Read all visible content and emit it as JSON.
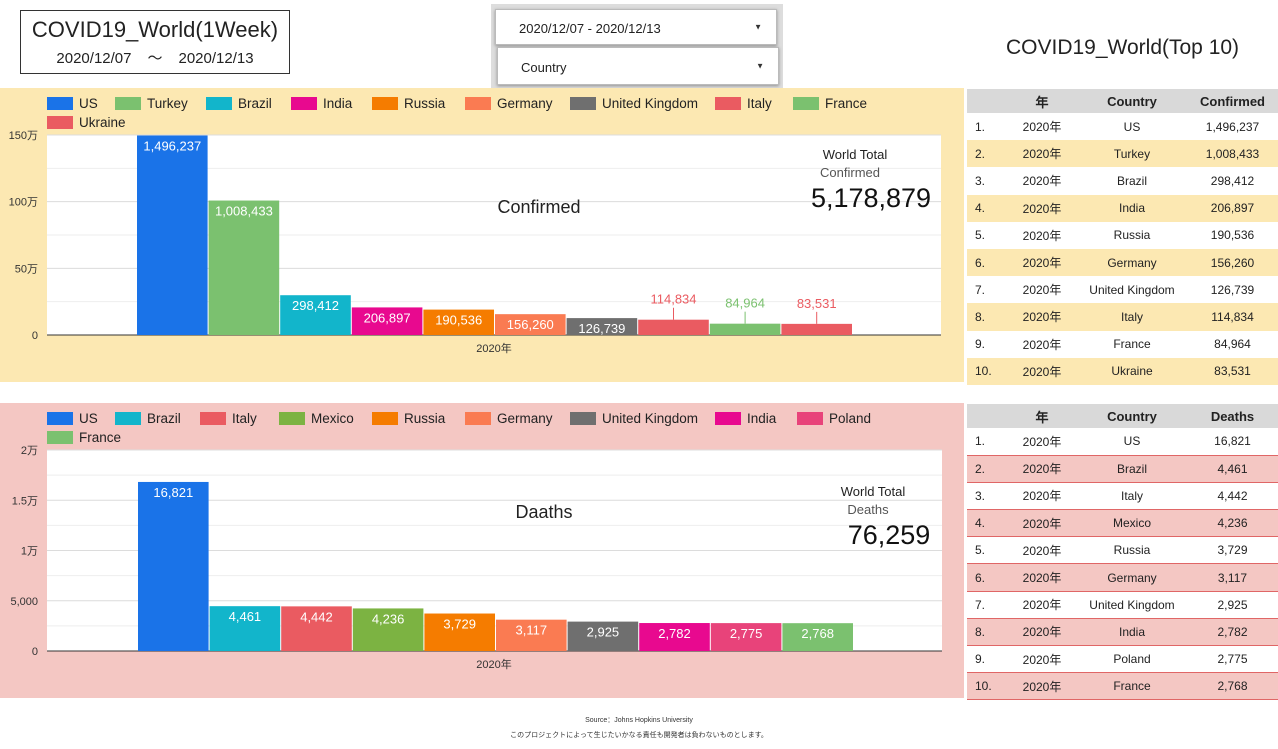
{
  "header": {
    "title": "COVID19_World(1Week)",
    "date_from": "2020/12/07",
    "date_sep": "〜",
    "date_to": "2020/12/13"
  },
  "controls": {
    "date_range": "2020/12/07 - 2020/12/13",
    "country": "Country",
    "dropdown_icon": "caret-down-icon"
  },
  "top10_title": "COVID19_World(Top 10)",
  "colors": {
    "confirmed_panel_bg": "#fce8b2",
    "deaths_panel_bg": "#f4c7c3"
  },
  "chart_data": [
    {
      "type": "bar",
      "title": "Confirmed",
      "xlabel": "2020年",
      "ylabel": "",
      "categories": [
        "2020年"
      ],
      "ylim": [
        0,
        1500000
      ],
      "yticks": [
        0,
        500000,
        1000000,
        1500000
      ],
      "ytick_labels": [
        "0",
        "50万",
        "100万",
        "150万"
      ],
      "grid": true,
      "legend_position": "top",
      "series": [
        {
          "name": "US",
          "values": [
            1496237
          ],
          "label": "1,496,237",
          "color": "#1a73e8",
          "label_inside": true
        },
        {
          "name": "Turkey",
          "values": [
            1008433
          ],
          "label": "1,008,433",
          "color": "#7bc16f",
          "label_inside": true
        },
        {
          "name": "Brazil",
          "values": [
            298412
          ],
          "label": "298,412",
          "color": "#12b5cb",
          "label_inside": true
        },
        {
          "name": "India",
          "values": [
            206897
          ],
          "label": "206,897",
          "color": "#e8098f",
          "label_inside": true
        },
        {
          "name": "Russia",
          "values": [
            190536
          ],
          "label": "190,536",
          "color": "#f57c00",
          "label_inside": true
        },
        {
          "name": "Germany",
          "values": [
            156260
          ],
          "label": "156,260",
          "color": "#fa7b52",
          "label_inside": true
        },
        {
          "name": "United Kingdom",
          "values": [
            126739
          ],
          "label": "126,739",
          "color": "#6f6f6f",
          "label_inside": true
        },
        {
          "name": "Italy",
          "values": [
            114834
          ],
          "label": "114,834",
          "color": "#ea5b61",
          "label_inside": false
        },
        {
          "name": "France",
          "values": [
            84964
          ],
          "label": "84,964",
          "color": "#7bc16f",
          "label_inside": false
        },
        {
          "name": "Ukraine",
          "values": [
            83531
          ],
          "label": "83,531",
          "color": "#ea5b61",
          "label_inside": false
        }
      ],
      "annotation": {
        "heading": "World Total",
        "subheading": "Confirmed",
        "value": "5,178,879"
      }
    },
    {
      "type": "bar",
      "title": "Daaths",
      "xlabel": "2020年",
      "ylabel": "",
      "categories": [
        "2020年"
      ],
      "ylim": [
        0,
        20000
      ],
      "yticks": [
        0,
        5000,
        10000,
        15000,
        20000
      ],
      "ytick_labels": [
        "0",
        "5,000",
        "1万",
        "1.5万",
        "2万"
      ],
      "grid": true,
      "legend_position": "top",
      "series": [
        {
          "name": "US",
          "values": [
            16821
          ],
          "label": "16,821",
          "color": "#1a73e8",
          "label_inside": true
        },
        {
          "name": "Brazil",
          "values": [
            4461
          ],
          "label": "4,461",
          "color": "#12b5cb",
          "label_inside": true
        },
        {
          "name": "Italy",
          "values": [
            4442
          ],
          "label": "4,442",
          "color": "#ea5b61",
          "label_inside": true
        },
        {
          "name": "Mexico",
          "values": [
            4236
          ],
          "label": "4,236",
          "color": "#7cb342",
          "label_inside": true
        },
        {
          "name": "Russia",
          "values": [
            3729
          ],
          "label": "3,729",
          "color": "#f57c00",
          "label_inside": true
        },
        {
          "name": "Germany",
          "values": [
            3117
          ],
          "label": "3,117",
          "color": "#fa7b52",
          "label_inside": true
        },
        {
          "name": "United Kingdom",
          "values": [
            2925
          ],
          "label": "2,925",
          "color": "#6f6f6f",
          "label_inside": true
        },
        {
          "name": "India",
          "values": [
            2782
          ],
          "label": "2,782",
          "color": "#e8098f",
          "label_inside": true
        },
        {
          "name": "Poland",
          "values": [
            2775
          ],
          "label": "2,775",
          "color": "#e8437a",
          "label_inside": true
        },
        {
          "name": "France",
          "values": [
            2768
          ],
          "label": "2,768",
          "color": "#7bc16f",
          "label_inside": true
        }
      ],
      "annotation": {
        "heading": "World Total",
        "subheading": "Deaths",
        "value": "76,259"
      }
    }
  ],
  "tables": [
    {
      "headers": [
        "",
        "年",
        "Country",
        "Confirmed"
      ],
      "row_bg": [
        "#ffffff",
        "#fce8b2"
      ],
      "rows": [
        [
          "1.",
          "2020年",
          "US",
          "1,496,237"
        ],
        [
          "2.",
          "2020年",
          "Turkey",
          "1,008,433"
        ],
        [
          "3.",
          "2020年",
          "Brazil",
          "298,412"
        ],
        [
          "4.",
          "2020年",
          "India",
          "206,897"
        ],
        [
          "5.",
          "2020年",
          "Russia",
          "190,536"
        ],
        [
          "6.",
          "2020年",
          "Germany",
          "156,260"
        ],
        [
          "7.",
          "2020年",
          "United Kingdom",
          "126,739"
        ],
        [
          "8.",
          "2020年",
          "Italy",
          "114,834"
        ],
        [
          "9.",
          "2020年",
          "France",
          "84,964"
        ],
        [
          "10.",
          "2020年",
          "Ukraine",
          "83,531"
        ]
      ]
    },
    {
      "headers": [
        "",
        "年",
        "Country",
        "Deaths"
      ],
      "row_bg": [
        "#ffffff",
        "#f4c7c3"
      ],
      "rows": [
        [
          "1.",
          "2020年",
          "US",
          "16,821"
        ],
        [
          "2.",
          "2020年",
          "Brazil",
          "4,461"
        ],
        [
          "3.",
          "2020年",
          "Italy",
          "4,442"
        ],
        [
          "4.",
          "2020年",
          "Mexico",
          "4,236"
        ],
        [
          "5.",
          "2020年",
          "Russia",
          "3,729"
        ],
        [
          "6.",
          "2020年",
          "Germany",
          "3,117"
        ],
        [
          "7.",
          "2020年",
          "United Kingdom",
          "2,925"
        ],
        [
          "8.",
          "2020年",
          "India",
          "2,782"
        ],
        [
          "9.",
          "2020年",
          "Poland",
          "2,775"
        ],
        [
          "10.",
          "2020年",
          "France",
          "2,768"
        ]
      ]
    }
  ],
  "footer": {
    "source": "Source：Johns Hopkins University",
    "disclaimer": "このプロジェクトによって生じたいかなる責任も開発者は負わないものとします。"
  }
}
